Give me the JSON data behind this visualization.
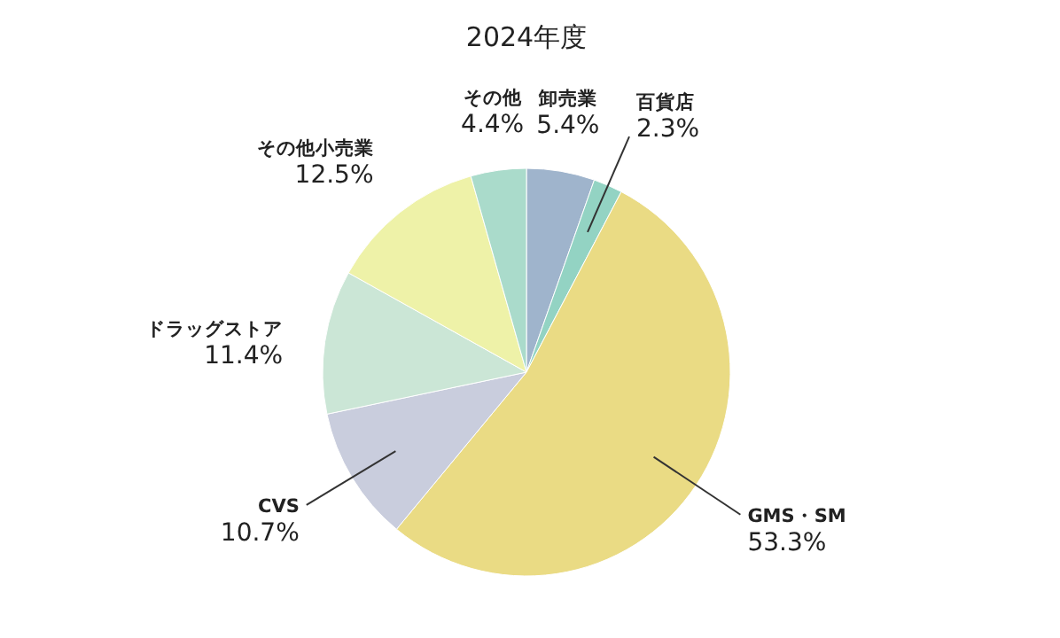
{
  "chart_data": {
    "type": "pie",
    "title": "2024年度",
    "categories": [
      "卸売業",
      "百貨店",
      "GMS・SM",
      "CVS",
      "ドラッグストア",
      "その他小売業",
      "その他"
    ],
    "values": [
      5.4,
      2.3,
      53.3,
      10.7,
      11.4,
      12.5,
      4.4
    ],
    "value_labels": [
      "5.4%",
      "2.3%",
      "53.3%",
      "10.7%",
      "11.4%",
      "12.5%",
      "4.4%"
    ],
    "colors": [
      "#9fb4cc",
      "#93d3c3",
      "#eadb84",
      "#c9cddd",
      "#cbe6d6",
      "#eef2a8",
      "#aadbcb"
    ],
    "legend": false
  }
}
